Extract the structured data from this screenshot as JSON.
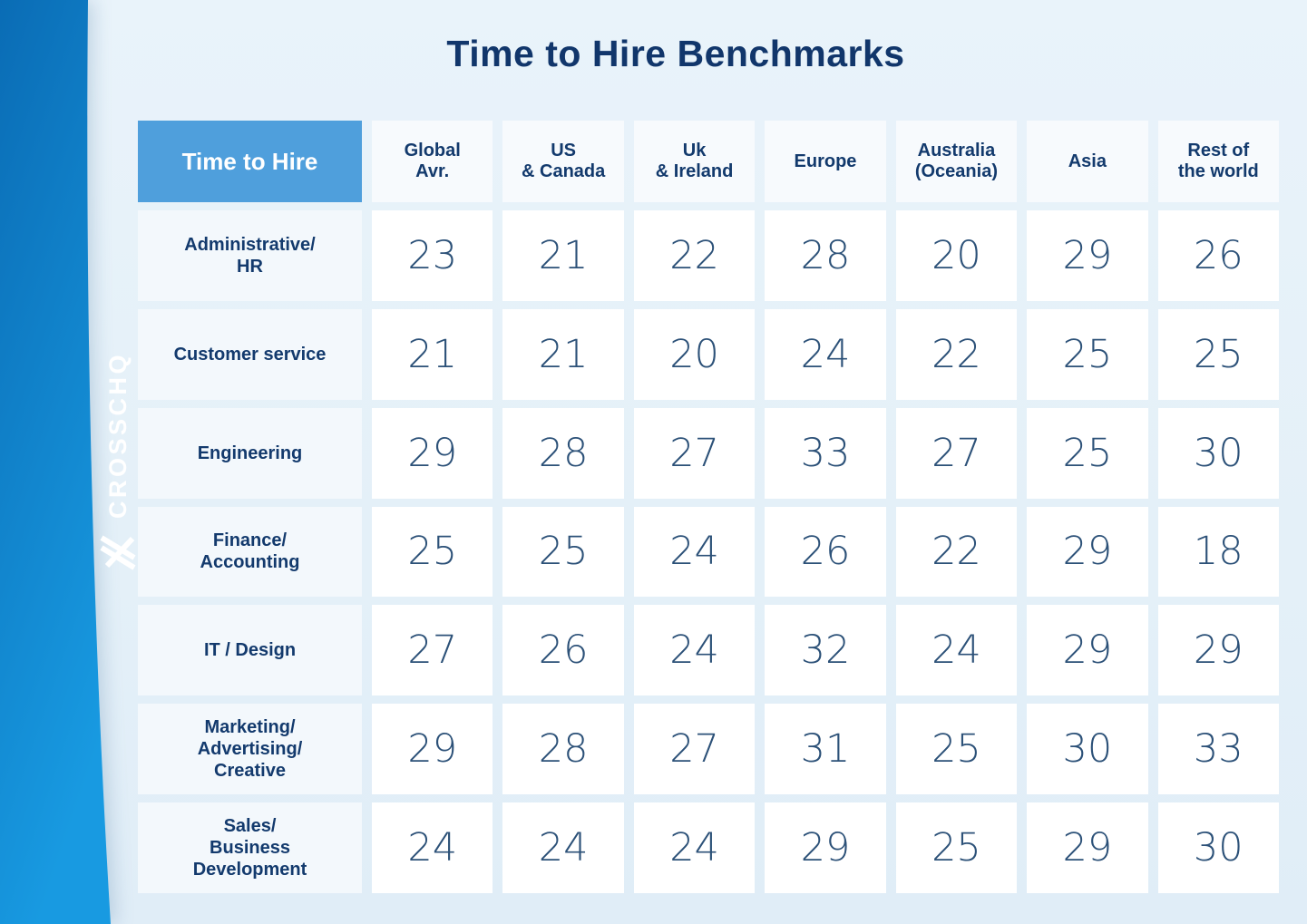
{
  "page": {
    "title": "Time to Hire Benchmarks"
  },
  "brand": {
    "logo_text": "CROSSCHQ",
    "mark_icon": "crosschq-double-slash-x-mark"
  },
  "table": {
    "corner_label": "Time to Hire",
    "columns": [
      {
        "lines": [
          "Global",
          "Avr."
        ]
      },
      {
        "lines": [
          "US",
          "& Canada"
        ]
      },
      {
        "lines": [
          "Uk",
          "& Ireland"
        ]
      },
      {
        "lines": [
          "Europe"
        ]
      },
      {
        "lines": [
          "Australia",
          "(Oceania)"
        ]
      },
      {
        "lines": [
          "Asia"
        ]
      },
      {
        "lines": [
          "Rest of",
          "the world"
        ]
      }
    ],
    "rows": [
      {
        "label_lines": [
          "Administrative/",
          "HR"
        ],
        "values": [
          23,
          21,
          22,
          28,
          20,
          29,
          26
        ]
      },
      {
        "label_lines": [
          "Customer service"
        ],
        "values": [
          21,
          21,
          20,
          24,
          22,
          25,
          25
        ]
      },
      {
        "label_lines": [
          "Engineering"
        ],
        "values": [
          29,
          28,
          27,
          33,
          27,
          25,
          30
        ]
      },
      {
        "label_lines": [
          "Finance/",
          "Accounting"
        ],
        "values": [
          25,
          25,
          24,
          26,
          22,
          29,
          18
        ]
      },
      {
        "label_lines": [
          "IT / Design"
        ],
        "values": [
          27,
          26,
          24,
          32,
          24,
          29,
          29
        ]
      },
      {
        "label_lines": [
          "Marketing/",
          "Advertising/",
          "Creative"
        ],
        "values": [
          29,
          28,
          27,
          31,
          25,
          30,
          33
        ]
      },
      {
        "label_lines": [
          "Sales/",
          "Business",
          "Development"
        ],
        "values": [
          24,
          24,
          24,
          29,
          25,
          29,
          30
        ]
      }
    ]
  },
  "colors": {
    "sidebar_top": "#0a6cb5",
    "sidebar_bottom": "#189ae1",
    "corner_bg": "#4f9fdc",
    "column_header_bg": "#f7fafd",
    "row_label_bg": "#f3f8fc",
    "value_cell_bg": "#ffffff",
    "navy_text": "#133a6d",
    "value_text": "#2c5178",
    "page_bg": "#e8f2fa"
  },
  "chart_data": {
    "type": "table",
    "title": "Time to Hire Benchmarks",
    "columns": [
      "Global Avr.",
      "US & Canada",
      "Uk & Ireland",
      "Europe",
      "Australia (Oceania)",
      "Asia",
      "Rest of the world"
    ],
    "row_labels": [
      "Administrative/HR",
      "Customer service",
      "Engineering",
      "Finance/Accounting",
      "IT / Design",
      "Marketing/Advertising/Creative",
      "Sales/Business Development"
    ],
    "values": [
      [
        23,
        21,
        22,
        28,
        20,
        29,
        26
      ],
      [
        21,
        21,
        20,
        24,
        22,
        25,
        25
      ],
      [
        29,
        28,
        27,
        33,
        27,
        25,
        30
      ],
      [
        25,
        25,
        24,
        26,
        22,
        29,
        18
      ],
      [
        27,
        26,
        24,
        32,
        24,
        29,
        29
      ],
      [
        29,
        28,
        27,
        31,
        25,
        30,
        33
      ],
      [
        24,
        24,
        24,
        29,
        25,
        29,
        30
      ]
    ]
  }
}
